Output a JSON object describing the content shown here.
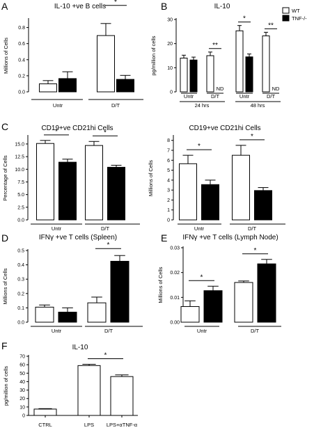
{
  "colors": {
    "wt_fill": "#ffffff",
    "tnf_fill": "#000000",
    "ink": "#000000"
  },
  "legend": {
    "items": [
      {
        "label": "WT",
        "fill": "#ffffff"
      },
      {
        "label": "TNF-/-",
        "fill": "#000000"
      }
    ]
  },
  "chart_data": [
    {
      "panel": "A",
      "type": "bar",
      "title": "IL-10 +ve B cells",
      "ylabel": "Millions of Cells",
      "ylim": [
        0,
        0.9
      ],
      "yticks": [
        "0.0",
        "0.2",
        "0.4",
        "0.6",
        "0.8"
      ],
      "groups": [
        "Untr",
        "D/T"
      ],
      "series": [
        {
          "group": 0,
          "value": 0.1,
          "err": 0.04,
          "fill": "#ffffff"
        },
        {
          "group": 0,
          "value": 0.165,
          "err": 0.085,
          "fill": "#000000"
        },
        {
          "group": 1,
          "value": 0.7,
          "err": 0.15,
          "fill": "#ffffff"
        },
        {
          "group": 1,
          "value": 0.155,
          "err": 0.05,
          "fill": "#000000"
        }
      ],
      "annotations": [
        {
          "from": 2,
          "to": 3,
          "text": "*"
        }
      ]
    },
    {
      "panel": "B",
      "type": "bar",
      "title": "IL-10",
      "ylabel": "pg/million of cells",
      "ylim": [
        0,
        30
      ],
      "yticks": [
        "0",
        "10",
        "20",
        "30"
      ],
      "groups": [
        "Untr",
        "D/T",
        "Untr",
        "D/T"
      ],
      "supergroups": [
        "24 hrs",
        "48 hrs"
      ],
      "series": [
        {
          "group": 0,
          "value": 14,
          "err": 1.2,
          "fill": "#ffffff"
        },
        {
          "group": 0,
          "value": 13.2,
          "err": 1.2,
          "fill": "#000000"
        },
        {
          "group": 1,
          "value": 15,
          "err": 1.5,
          "fill": "#ffffff"
        },
        {
          "group": 1,
          "value": 0,
          "err": 0,
          "fill": "#000000",
          "label": "ND"
        },
        {
          "group": 2,
          "value": 25.3,
          "err": 2.2,
          "fill": "#ffffff"
        },
        {
          "group": 2,
          "value": 14.5,
          "err": 1.2,
          "fill": "#000000"
        },
        {
          "group": 3,
          "value": 23.2,
          "err": 1.5,
          "fill": "#ffffff"
        },
        {
          "group": 3,
          "value": 0,
          "err": 0,
          "fill": "#000000",
          "label": "ND"
        }
      ],
      "annotations": [
        {
          "from": 2,
          "to": 3,
          "text": "**"
        },
        {
          "from": 4,
          "to": 5,
          "text": "*"
        },
        {
          "from": 6,
          "to": 7,
          "text": "**"
        }
      ]
    },
    {
      "panel": "C",
      "type": "bar",
      "title": "CD19+ve CD21hi Cells",
      "ylabel": "Percentage of Cells",
      "ylim": [
        0,
        16.5
      ],
      "yticks": [
        "0.0",
        "2.5",
        "5.0",
        "7.5",
        "10.0",
        "12.5",
        "15.0"
      ],
      "groups": [
        "Untr",
        "D/T"
      ],
      "series": [
        {
          "group": 0,
          "value": 15.1,
          "err": 0.6,
          "fill": "#ffffff"
        },
        {
          "group": 0,
          "value": 11.4,
          "err": 0.6,
          "fill": "#000000"
        },
        {
          "group": 1,
          "value": 14.7,
          "err": 0.8,
          "fill": "#ffffff"
        },
        {
          "group": 1,
          "value": 10.4,
          "err": 0.4,
          "fill": "#000000"
        }
      ],
      "annotations": [
        {
          "from": 0,
          "to": 1,
          "text": "*"
        },
        {
          "from": 2,
          "to": 3,
          "text": "*"
        }
      ]
    },
    {
      "panel": "",
      "type": "bar",
      "title": "CD19+ve CD21hi Cells",
      "ylabel": "Millions of Cells",
      "ylim": [
        0,
        8.4
      ],
      "yticks": [
        "0",
        "1",
        "2",
        "3",
        "4",
        "5",
        "6",
        "7",
        "8"
      ],
      "groups": [
        "Untr",
        "D/T"
      ],
      "series": [
        {
          "group": 0,
          "value": 5.65,
          "err": 0.85,
          "fill": "#ffffff"
        },
        {
          "group": 0,
          "value": 3.55,
          "err": 0.45,
          "fill": "#000000"
        },
        {
          "group": 1,
          "value": 6.5,
          "err": 1.0,
          "fill": "#ffffff"
        },
        {
          "group": 1,
          "value": 2.95,
          "err": 0.3,
          "fill": "#000000"
        }
      ],
      "annotations": [
        {
          "from": 0,
          "to": 1,
          "text": "*"
        },
        {
          "from": 2,
          "to": 3,
          "text": "*"
        }
      ]
    },
    {
      "panel": "D",
      "type": "bar",
      "title": "IFNγ +ve T cells (Spleen)",
      "ylabel": "Millions of Cells",
      "ylim": [
        0,
        0.5
      ],
      "yticks": [
        "0.0",
        "0.1",
        "0.2",
        "0.3",
        "0.4",
        "0.5"
      ],
      "groups": [
        "Untr",
        "D/T"
      ],
      "series": [
        {
          "group": 0,
          "value": 0.105,
          "err": 0.015,
          "fill": "#ffffff"
        },
        {
          "group": 0,
          "value": 0.07,
          "err": 0.03,
          "fill": "#000000"
        },
        {
          "group": 1,
          "value": 0.135,
          "err": 0.04,
          "fill": "#ffffff"
        },
        {
          "group": 1,
          "value": 0.425,
          "err": 0.04,
          "fill": "#000000"
        }
      ],
      "annotations": [
        {
          "from": 2,
          "to": 3,
          "text": "*"
        }
      ]
    },
    {
      "panel": "E",
      "type": "bar",
      "title": "IFNγ +ve T cells (Lymph Node)",
      "ylabel": "Millions of Cells",
      "ylim": [
        0,
        0.03
      ],
      "yticks": [
        "0.00",
        "0.01",
        "0.02",
        "0.03"
      ],
      "groups": [
        "Untr",
        "D/T"
      ],
      "series": [
        {
          "group": 0,
          "value": 0.0063,
          "err": 0.0023,
          "fill": "#ffffff"
        },
        {
          "group": 0,
          "value": 0.0127,
          "err": 0.0018,
          "fill": "#000000"
        },
        {
          "group": 1,
          "value": 0.016,
          "err": 0.0006,
          "fill": "#ffffff"
        },
        {
          "group": 1,
          "value": 0.0235,
          "err": 0.0018,
          "fill": "#000000"
        }
      ],
      "annotations": [
        {
          "from": 0,
          "to": 1,
          "text": "*"
        },
        {
          "from": 2,
          "to": 3,
          "text": "*"
        }
      ]
    },
    {
      "panel": "F",
      "type": "bar",
      "title": "IL-10",
      "ylabel": "pg/million of cells",
      "ylim": [
        0,
        70
      ],
      "yticks": [
        "0",
        "10",
        "20",
        "30",
        "40",
        "50",
        "60",
        "70"
      ],
      "categories": [
        "CTRL",
        "LPS",
        "LPS+αTNF-α"
      ],
      "series": [
        {
          "group": 0,
          "value": 7.5,
          "err": 0.5,
          "fill": "#ffffff"
        },
        {
          "group": 1,
          "value": 59,
          "err": 1.5,
          "fill": "#ffffff"
        },
        {
          "group": 2,
          "value": 46,
          "err": 2.0,
          "fill": "#ffffff"
        }
      ],
      "annotations": [
        {
          "from": 1,
          "to": 2,
          "text": "*"
        }
      ]
    }
  ]
}
